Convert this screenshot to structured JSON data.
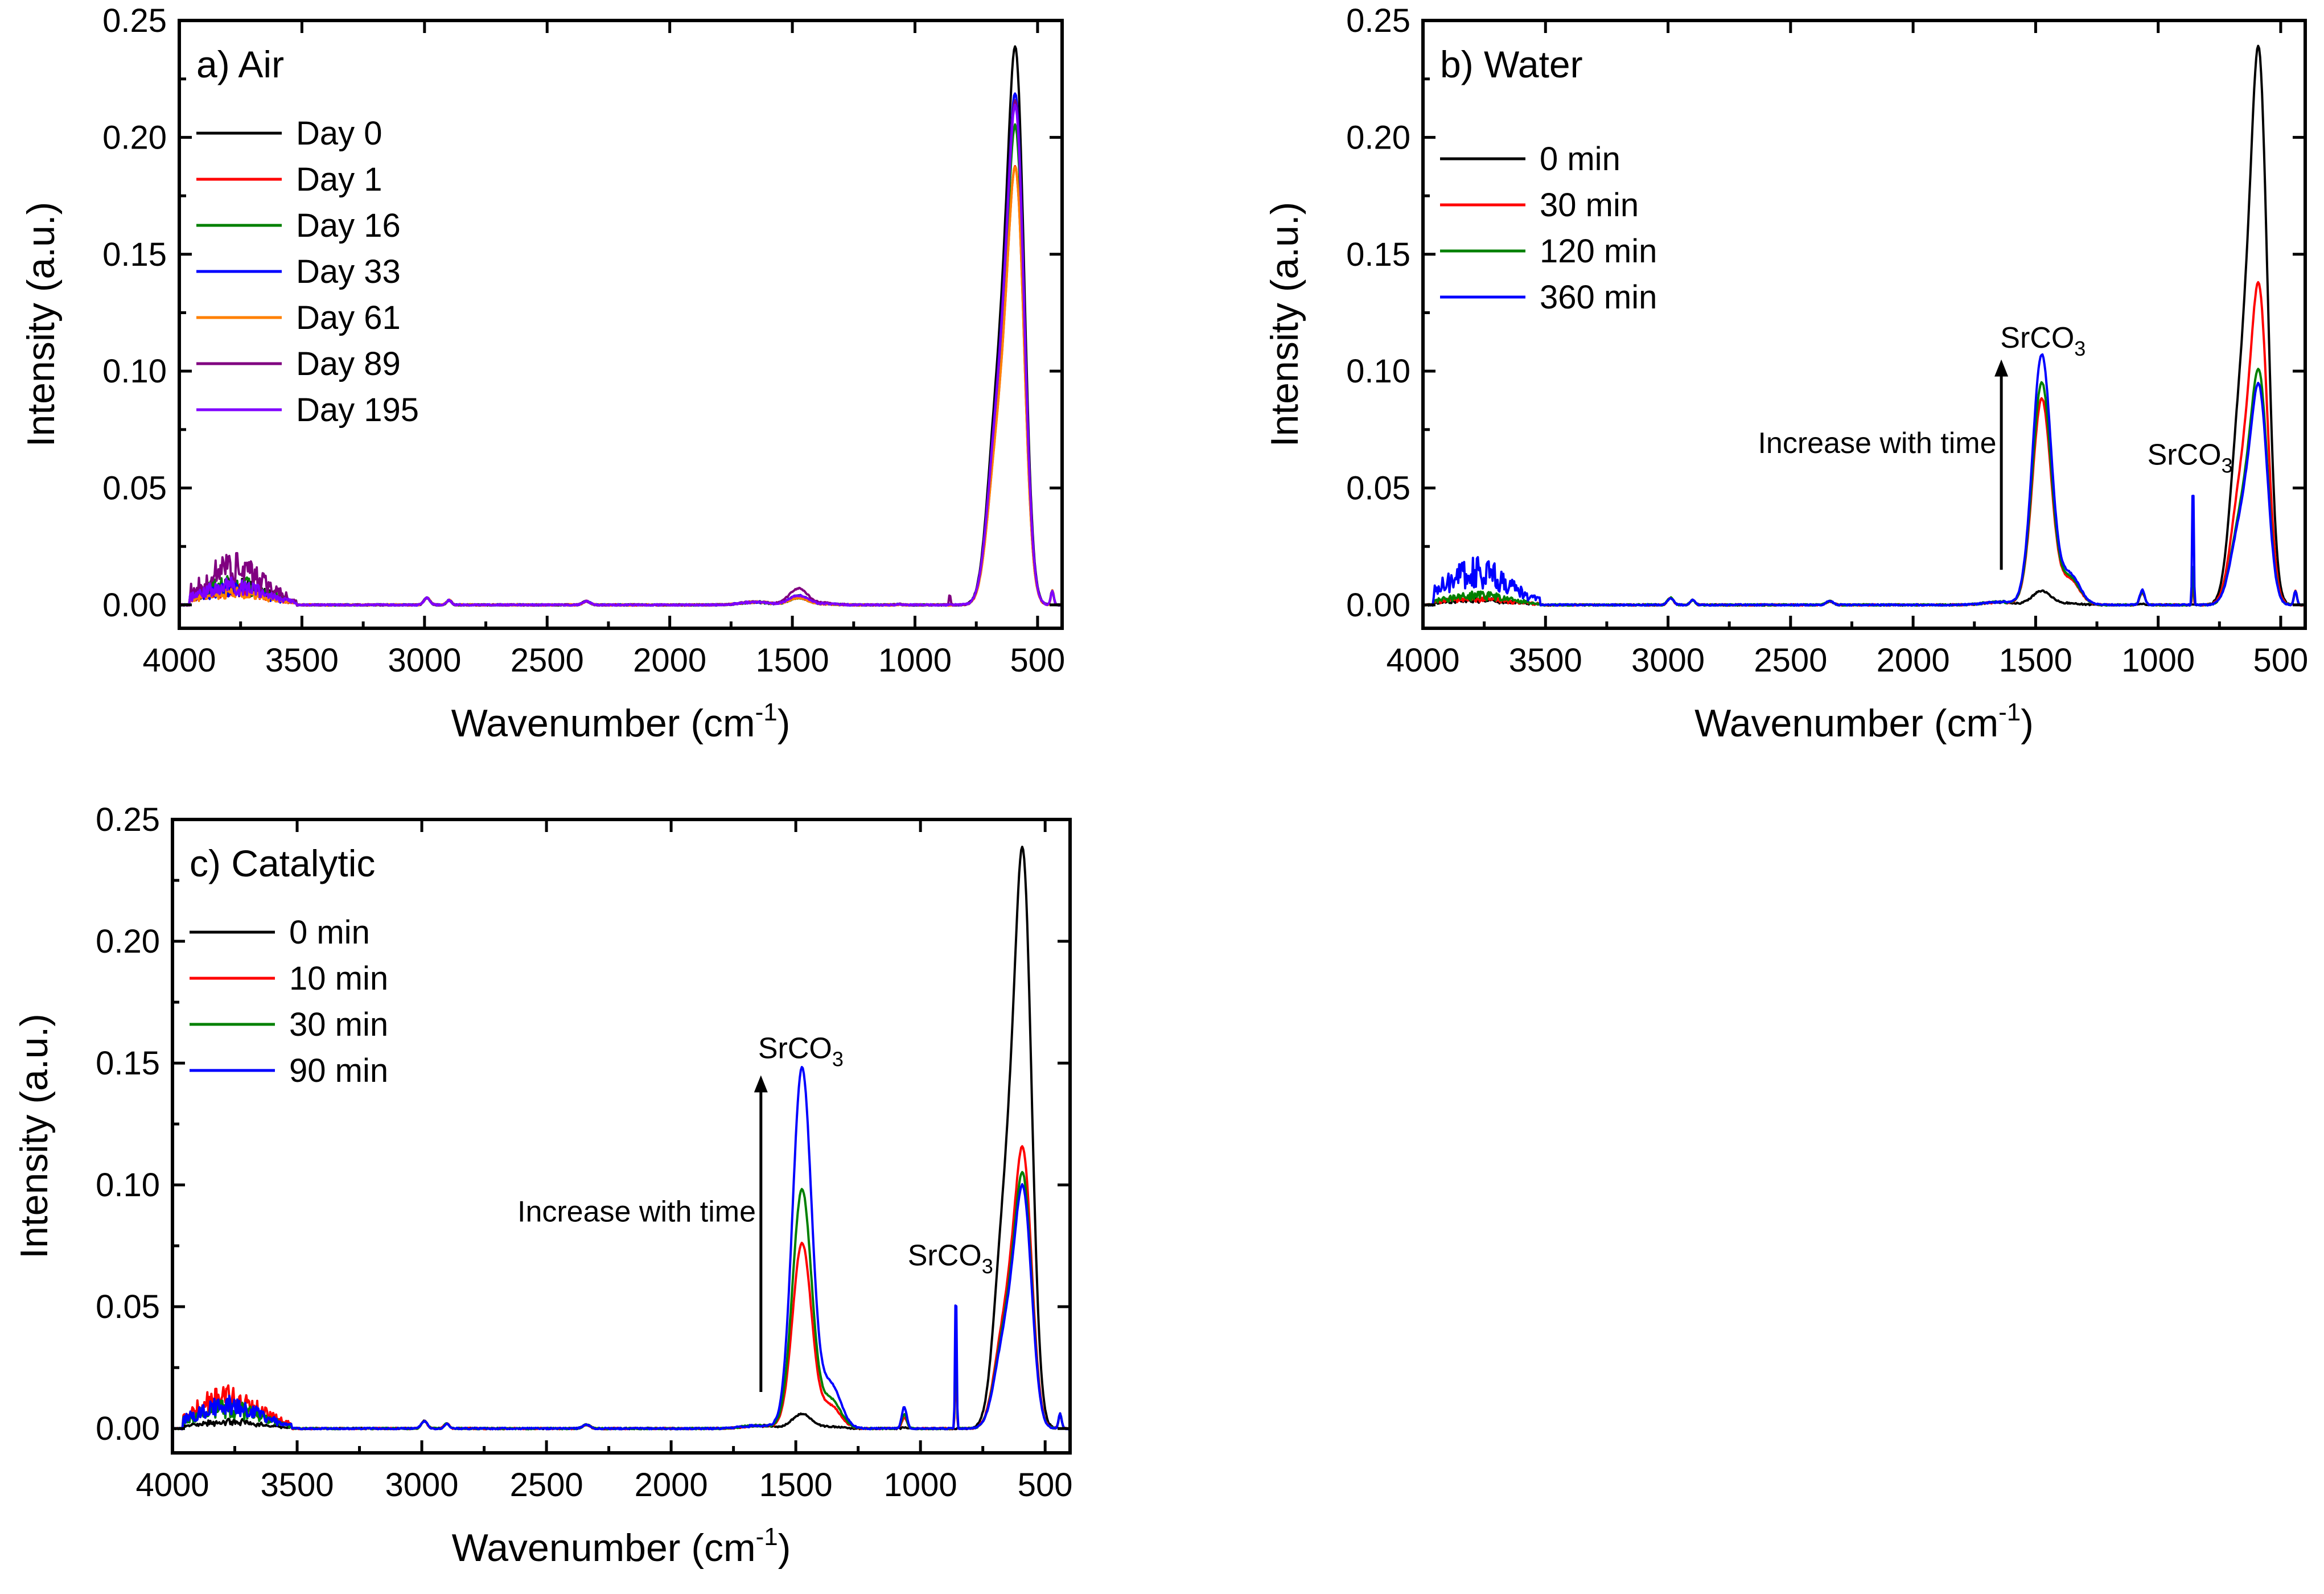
{
  "chart_data": [
    {
      "type": "line",
      "id": "a",
      "title": "a) Air",
      "xlabel": "Wavenumber (cm",
      "xlabel_sup": "-1",
      "xlabel_end": ")",
      "ylabel": "Intensity (a.u.)",
      "xlim": [
        4000,
        400
      ],
      "ylim": [
        -0.01,
        0.25
      ],
      "xticks": [
        4000,
        3500,
        3000,
        2500,
        2000,
        1500,
        1000,
        500
      ],
      "xtick_labels": [
        "4000",
        "3500",
        "3000",
        "2500",
        "2000",
        "1500",
        "1000",
        "500"
      ],
      "yticks": [
        0.0,
        0.05,
        0.1,
        0.15,
        0.2,
        0.25
      ],
      "ytick_labels": [
        "0.00",
        "0.05",
        "0.10",
        "0.15",
        "0.20",
        "0.25"
      ],
      "annotations": [],
      "series": [
        {
          "name": "Day 0",
          "color": "#000000",
          "peak": 0.227,
          "noise": 0.012,
          "c1470": 0.004,
          "c860": 0.0
        },
        {
          "name": "Day 1",
          "color": "#ff0000",
          "peak": 0.178,
          "noise": 0.01,
          "c1470": 0.003,
          "c860": 0.0
        },
        {
          "name": "Day 16",
          "color": "#008000",
          "peak": 0.195,
          "noise": 0.013,
          "c1470": 0.003,
          "c860": 0.0
        },
        {
          "name": "Day 33",
          "color": "#0000ff",
          "peak": 0.208,
          "noise": 0.01,
          "c1470": 0.004,
          "c860": 0.0
        },
        {
          "name": "Day 61",
          "color": "#ff8000",
          "peak": 0.178,
          "noise": 0.008,
          "c1470": 0.003,
          "c860": 0.0
        },
        {
          "name": "Day 89",
          "color": "#800080",
          "peak": 0.205,
          "noise": 0.022,
          "c1470": 0.007,
          "c860": 0.005
        },
        {
          "name": "Day 195",
          "color": "#8000ff",
          "peak": 0.203,
          "noise": 0.012,
          "c1470": 0.004,
          "c860": 0.0
        }
      ]
    },
    {
      "type": "line",
      "id": "b",
      "title": "b) Water",
      "xlabel": "Wavenumber (cm",
      "xlabel_sup": "-1",
      "xlabel_end": ")",
      "ylabel": "Intensity (a.u.)",
      "xlim": [
        4000,
        400
      ],
      "ylim": [
        -0.01,
        0.25
      ],
      "xticks": [
        4000,
        3500,
        3000,
        2500,
        2000,
        1500,
        1000,
        500
      ],
      "xtick_labels": [
        "4000",
        "3500",
        "3000",
        "2500",
        "2000",
        "1500",
        "1000",
        "500"
      ],
      "yticks": [
        0.0,
        0.05,
        0.1,
        0.15,
        0.2,
        0.25
      ],
      "ytick_labels": [
        "0.00",
        "0.05",
        "0.10",
        "0.15",
        "0.20",
        "0.25"
      ],
      "annotations": [
        {
          "text": "SrCO",
          "sub": "3",
          "x": 1470,
          "y": 0.11,
          "anchor": "middle"
        },
        {
          "text": "SrCO",
          "sub": "3",
          "x": 870,
          "y": 0.06,
          "anchor": "middle"
        },
        {
          "text": "Increase with time",
          "sub": "",
          "x": 1660,
          "y": 0.065,
          "anchor": "end"
        }
      ],
      "arrow": {
        "x": 1640,
        "y_from": 0.015,
        "y_to": 0.105
      },
      "series": [
        {
          "name": "0 min",
          "color": "#000000",
          "peak": 0.227,
          "noise": 0.003,
          "c1470": 0.006,
          "c860": 0.0
        },
        {
          "name": "30 min",
          "color": "#ff0000",
          "peak": 0.131,
          "noise": 0.004,
          "c1470": 0.088,
          "c860": 0.01
        },
        {
          "name": "120 min",
          "color": "#008000",
          "peak": 0.096,
          "noise": 0.006,
          "c1470": 0.095,
          "c860": 0.02
        },
        {
          "name": "360 min",
          "color": "#0000ff",
          "peak": 0.09,
          "noise": 0.021,
          "c1470": 0.107,
          "c860": 0.058
        }
      ]
    },
    {
      "type": "line",
      "id": "c",
      "title": "c) Catalytic",
      "xlabel": "Wavenumber (cm",
      "xlabel_sup": "-1",
      "xlabel_end": ")",
      "ylabel": "Intensity (a.u.)",
      "xlim": [
        4000,
        400
      ],
      "ylim": [
        -0.01,
        0.25
      ],
      "xticks": [
        4000,
        3500,
        3000,
        2500,
        2000,
        1500,
        1000,
        500
      ],
      "xtick_labels": [
        "4000",
        "3500",
        "3000",
        "2500",
        "2000",
        "1500",
        "1000",
        "500"
      ],
      "yticks": [
        0.0,
        0.05,
        0.1,
        0.15,
        0.2,
        0.25
      ],
      "ytick_labels": [
        "0.00",
        "0.05",
        "0.10",
        "0.15",
        "0.20",
        "0.25"
      ],
      "annotations": [
        {
          "text": "SrCO",
          "sub": "3",
          "x": 1480,
          "y": 0.152,
          "anchor": "middle"
        },
        {
          "text": "SrCO",
          "sub": "3",
          "x": 880,
          "y": 0.067,
          "anchor": "middle"
        },
        {
          "text": "Increase with time",
          "sub": "",
          "x": 1660,
          "y": 0.085,
          "anchor": "end"
        }
      ],
      "arrow": {
        "x": 1640,
        "y_from": 0.015,
        "y_to": 0.145
      },
      "series": [
        {
          "name": "0 min",
          "color": "#000000",
          "peak": 0.227,
          "noise": 0.004,
          "c1470": 0.006,
          "c860": 0.0
        },
        {
          "name": "10 min",
          "color": "#ff0000",
          "peak": 0.11,
          "noise": 0.018,
          "c1470": 0.076,
          "c860": 0.03
        },
        {
          "name": "30 min",
          "color": "#008000",
          "peak": 0.1,
          "noise": 0.012,
          "c1470": 0.098,
          "c860": 0.045
        },
        {
          "name": "90 min",
          "color": "#0000ff",
          "peak": 0.095,
          "noise": 0.014,
          "c1470": 0.148,
          "c860": 0.063
        }
      ]
    }
  ]
}
